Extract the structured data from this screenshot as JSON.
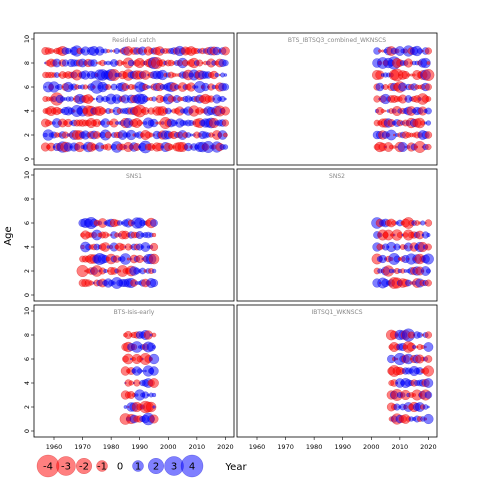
{
  "chart_data": {
    "type": "scatter",
    "subtype": "residual-bubble-grid",
    "xlabel": "Year",
    "ylabel": "Age",
    "xlim": [
      1953,
      2023
    ],
    "ylim": [
      -0.5,
      10.5
    ],
    "x_ticks": [
      "1960",
      "1970",
      "1980",
      "1990",
      "2000",
      "2010",
      "2020"
    ],
    "y_ticks": [
      "0",
      "2",
      "4",
      "6",
      "8",
      "10"
    ],
    "colors": {
      "positive": "#0000ff",
      "negative": "#ff0000"
    },
    "legend": {
      "values": [
        -4,
        -3,
        -2,
        -1,
        0,
        1,
        2,
        3,
        4
      ],
      "labels": [
        "-4",
        "-3",
        "-2",
        "-1",
        "0",
        "1",
        "2",
        "3",
        "4"
      ]
    },
    "panels": [
      {
        "title": "Residual catch",
        "years": [
          1957,
          2020
        ],
        "ages": [
          1,
          2,
          3,
          4,
          5,
          6,
          7,
          8,
          9
        ],
        "seed": 11
      },
      {
        "title": "BTS_IBTSQ3_combined_WKNSCS",
        "years": [
          2002,
          2020
        ],
        "ages": [
          1,
          2,
          3,
          4,
          5,
          6,
          7,
          8,
          9
        ],
        "seed": 23
      },
      {
        "title": "SNS1",
        "years": [
          1970,
          1995
        ],
        "ages": [
          1,
          2,
          3,
          4,
          5,
          6
        ],
        "seed": 37
      },
      {
        "title": "SNS2",
        "years": [
          2002,
          2020
        ],
        "ages": [
          1,
          2,
          3,
          4,
          5,
          6
        ],
        "seed": 41
      },
      {
        "title": "BTS-Isis-early",
        "years": [
          1985,
          1995
        ],
        "ages": [
          1,
          2,
          3,
          4,
          5,
          6,
          7,
          8
        ],
        "seed": 53
      },
      {
        "title": "IBTSQ1_WKNSCS",
        "years": [
          2007,
          2020
        ],
        "ages": [
          1,
          2,
          3,
          4,
          5,
          6,
          7,
          8
        ],
        "seed": 67
      }
    ]
  }
}
